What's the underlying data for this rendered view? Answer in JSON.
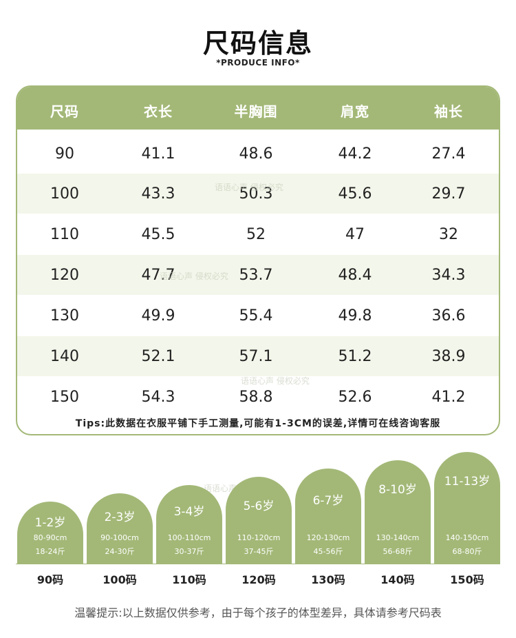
{
  "header": {
    "title": "尺码信息",
    "subtitle": "*PRODUCE INFO*"
  },
  "table": {
    "headers": [
      "尺码",
      "衣长",
      "半胸围",
      "肩宽",
      "袖长"
    ],
    "rows": [
      [
        "90",
        "41.1",
        "48.6",
        "44.2",
        "27.4"
      ],
      [
        "100",
        "43.3",
        "50.3",
        "45.6",
        "29.7"
      ],
      [
        "110",
        "45.5",
        "52",
        "47",
        "32"
      ],
      [
        "120",
        "47.7",
        "53.7",
        "48.4",
        "34.3"
      ],
      [
        "130",
        "49.9",
        "55.4",
        "49.8",
        "36.6"
      ],
      [
        "140",
        "52.1",
        "57.1",
        "51.2",
        "38.9"
      ],
      [
        "150",
        "54.3",
        "58.8",
        "52.6",
        "41.2"
      ]
    ],
    "tips": "Tips:此数据在衣服平铺下手工测量,可能有1-3CM的误差,详情可在线咨询客服"
  },
  "watermarks": [
    "语语心声 侵权必究",
    "语语心声 侵权必究",
    "语语心声 侵权必究",
    "语语心声 侵权必究"
  ],
  "age_chart": {
    "items": [
      {
        "age": "1-2岁",
        "height": "80-90cm",
        "weight": "18-24斤",
        "size": "90码"
      },
      {
        "age": "2-3岁",
        "height": "90-100cm",
        "weight": "24-30斤",
        "size": "100码"
      },
      {
        "age": "3-4岁",
        "height": "100-110cm",
        "weight": "30-37斤",
        "size": "110码"
      },
      {
        "age": "5-6岁",
        "height": "110-120cm",
        "weight": "37-45斤",
        "size": "120码"
      },
      {
        "age": "6-7岁",
        "height": "120-130cm",
        "weight": "45-56斤",
        "size": "130码"
      },
      {
        "age": "8-10岁",
        "height": "130-140cm",
        "weight": "56-68斤",
        "size": "140码"
      },
      {
        "age": "11-13岁",
        "height": "140-150cm",
        "weight": "68-80斤",
        "size": "150码"
      }
    ]
  },
  "footer": {
    "note": "温馨提示:以上数据仅供参考，由于每个孩子的体型差异，具体请参考尺码表"
  },
  "colors": {
    "accent_green": "#a3b877",
    "row_alt": "#f3f6ea"
  }
}
